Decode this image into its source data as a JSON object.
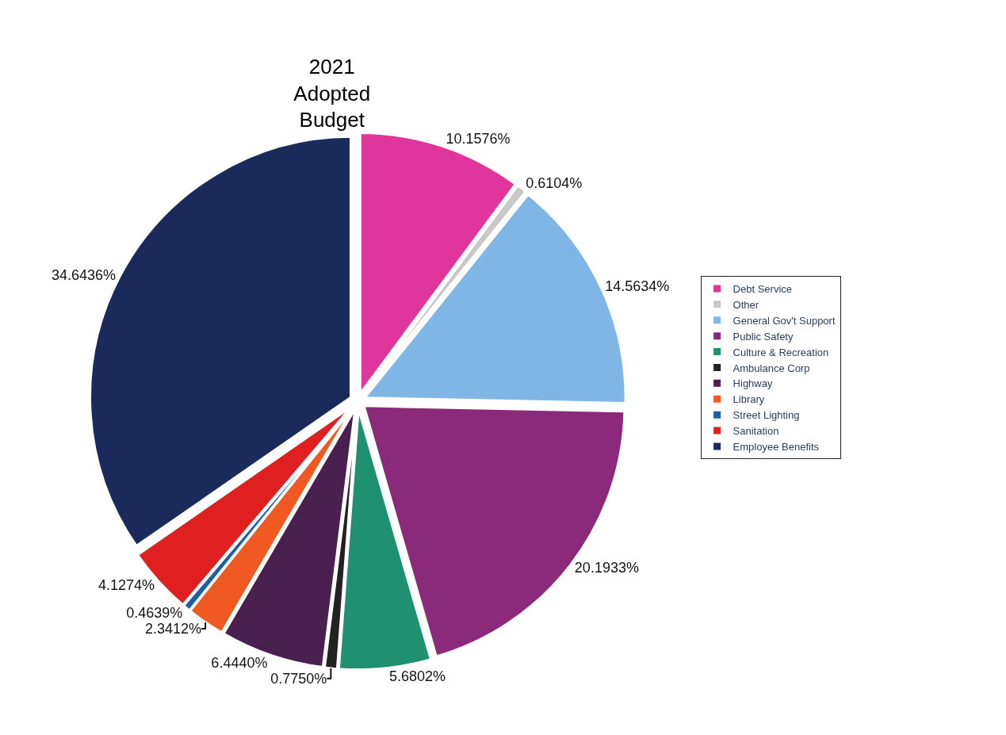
{
  "chart_data": {
    "type": "pie",
    "title": "2021 Adopted Budget",
    "categories": [
      "Debt Service",
      "Other",
      "General Gov't Support",
      "Public Safety",
      "Culture & Recreation",
      "Ambulance Corp",
      "Highway",
      "Library",
      "Street Lighting",
      "Sanitation",
      "Employee Benefits"
    ],
    "values": [
      10.1576,
      0.6104,
      14.5634,
      20.1933,
      5.6802,
      0.775,
      6.444,
      2.3412,
      0.4639,
      4.1274,
      34.6436
    ],
    "value_labels": [
      "10.1576%",
      "0.6104%",
      "14.5634%",
      "20.1933%",
      "5.6802%",
      "0.7750%",
      "6.4440%",
      "2.3412%",
      "0.4639%",
      "4.1274%",
      "34.6436%"
    ],
    "colors": [
      "#e0359a",
      "#c8c8c8",
      "#7fb6e6",
      "#8b2a7a",
      "#1f9070",
      "#222222",
      "#4a2050",
      "#f05a22",
      "#1c5fa8",
      "#e02020",
      "#1a2a5a"
    ],
    "legend": "right"
  }
}
